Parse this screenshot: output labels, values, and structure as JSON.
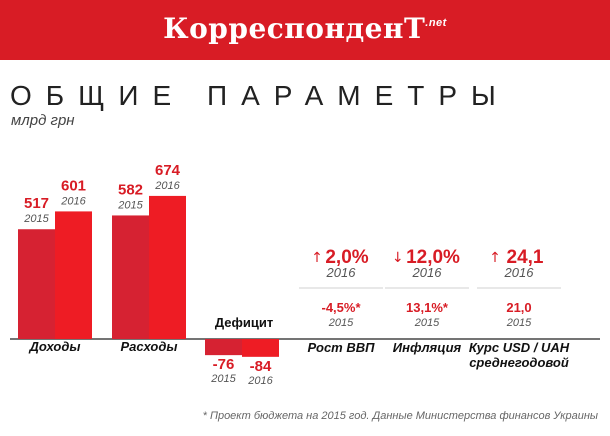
{
  "header": {
    "logo_main": "КорреспонденТ",
    "logo_suffix": ".net",
    "brand_color": "#d81c25"
  },
  "title": "ОБЩИЕ ПАРАМЕТРЫ",
  "unit": "млрд грн",
  "footnote": "* Проект бюджета на 2015 год. Данные Министерства финансов Украины",
  "chart_data": {
    "type": "bar",
    "categories": [
      "Доходы",
      "Расходы"
    ],
    "series": [
      {
        "name": "2015",
        "values": [
          517,
          582
        ]
      },
      {
        "name": "2016",
        "values": [
          601,
          674
        ]
      }
    ],
    "deficit": {
      "label": "Дефицит",
      "series": [
        {
          "name": "2015",
          "value": -76
        },
        {
          "name": "2016",
          "value": -84
        }
      ]
    },
    "colors": {
      "2015": "#d62232",
      "2016": "#ee1c24"
    },
    "value_labels": [
      "517",
      "601",
      "582",
      "674"
    ],
    "deficit_labels": [
      "-76",
      "-84"
    ],
    "year_labels": [
      "2015",
      "2016"
    ]
  },
  "indicators": [
    {
      "label": "Рост ВВП",
      "arrow": "↑",
      "value_2016": "2,0%",
      "year_2016": "2016",
      "value_2015": "-4,5%*",
      "year_2015": "2015"
    },
    {
      "label": "Инфляция",
      "arrow": "↓",
      "value_2016": "12,0%",
      "year_2016": "2016",
      "value_2015": "13,1%*",
      "year_2015": "2015"
    },
    {
      "label": "Курс USD / UAH",
      "label_line2": "среднегодовой",
      "arrow": "↑",
      "value_2016": "24,1",
      "year_2016": "2016",
      "value_2015": "21,0",
      "year_2015": "2015"
    }
  ]
}
